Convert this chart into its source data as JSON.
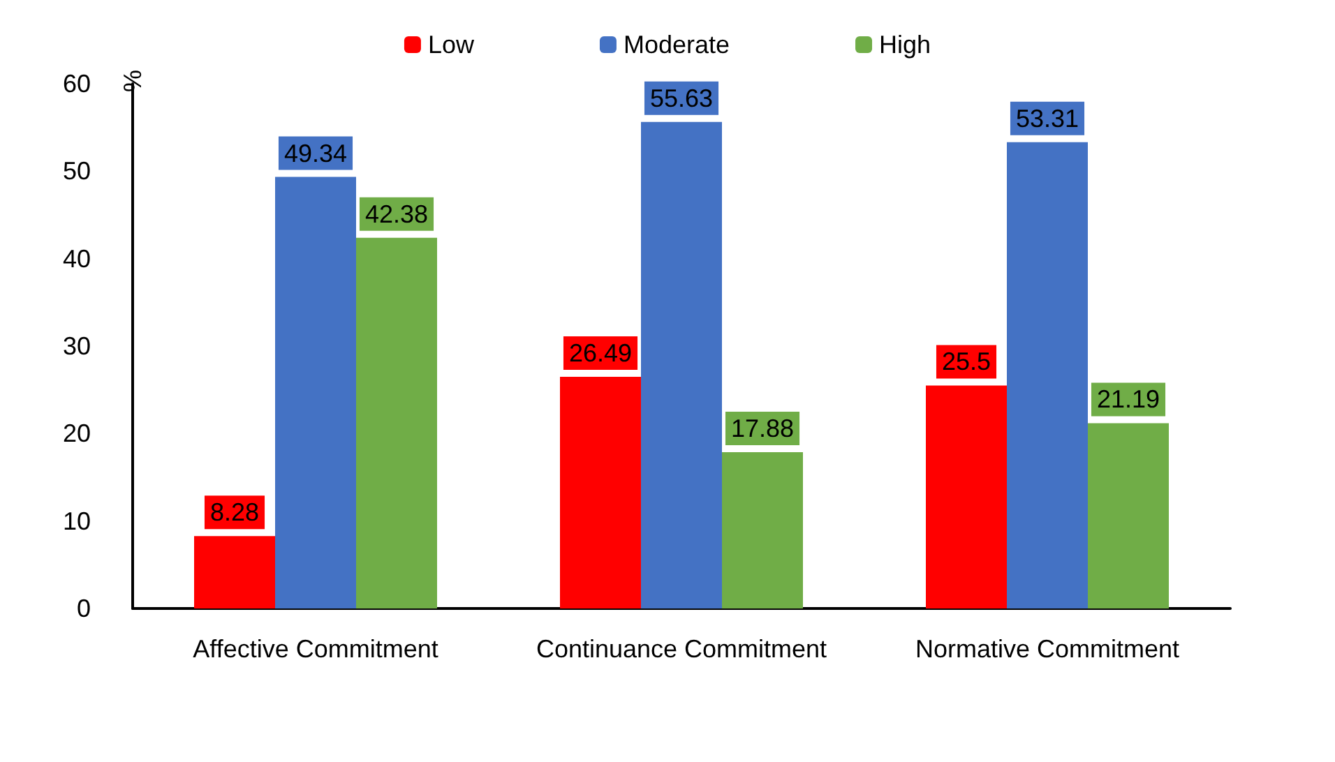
{
  "chart_data": {
    "type": "bar",
    "ylabel": "%",
    "categories": [
      "Affective Commitment",
      "Continuance Commitment",
      "Normative Commitment"
    ],
    "series": [
      {
        "name": "Low",
        "color": "#ff0000",
        "values": [
          8.28,
          26.49,
          25.5
        ]
      },
      {
        "name": "Moderate",
        "color": "#4472c4",
        "values": [
          49.34,
          55.63,
          53.31
        ]
      },
      {
        "name": "High",
        "color": "#70ad47",
        "values": [
          42.38,
          17.88,
          21.19
        ]
      }
    ],
    "ylim": [
      0,
      60
    ],
    "yticks": [
      0,
      10,
      20,
      30,
      40,
      50,
      60
    ],
    "grid": false,
    "legend": "top",
    "data_labels": true
  }
}
